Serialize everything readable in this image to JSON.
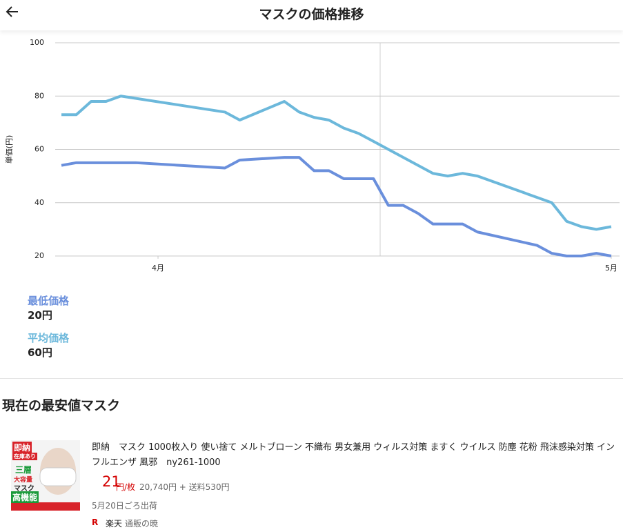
{
  "header": {
    "title": "マスクの価格推移"
  },
  "chart_data": {
    "type": "line",
    "y_label": "単価(円)",
    "xlim": [
      -0.42,
      37.56
    ],
    "xticks": [
      {
        "value": 6.5,
        "label": "4月"
      },
      {
        "value": 37,
        "label": "5月"
      }
    ],
    "ylim": [
      20,
      100
    ],
    "yticks": [
      20,
      40,
      60,
      80,
      100
    ],
    "grid": true,
    "series": [
      {
        "name": "最低価格",
        "color": "#6a8fdc",
        "x": [
          0,
          1,
          5,
          11,
          12,
          15,
          16,
          17,
          18,
          19,
          20,
          21,
          22,
          23,
          24,
          25,
          26,
          27,
          28,
          32,
          33,
          34,
          35,
          36,
          37
        ],
        "values": [
          54,
          55,
          55,
          53,
          56,
          57,
          57,
          52,
          52,
          49,
          49,
          49,
          39,
          39,
          36,
          32,
          32,
          32,
          29,
          24,
          21,
          20,
          20,
          21,
          20
        ]
      },
      {
        "name": "平均価格",
        "color": "#6cb8db",
        "x": [
          0,
          1,
          2,
          3,
          4,
          11,
          12,
          15,
          16,
          17,
          18,
          19,
          20,
          21,
          25,
          26,
          27,
          28,
          33,
          34,
          35,
          36,
          37
        ],
        "values": [
          73,
          73,
          78,
          78,
          80,
          74,
          71,
          78,
          74,
          72,
          71,
          68,
          66,
          63,
          51,
          50,
          51,
          50,
          40,
          33,
          31,
          30,
          31
        ]
      }
    ]
  },
  "summary": {
    "min_price": "20円",
    "avg_price": "60円"
  },
  "section": {
    "title": "現在の最安値マスク"
  },
  "product": {
    "image_texts": [
      "即納",
      "在庫あり",
      "三層",
      "大容量",
      "マスク",
      "高機能"
    ],
    "title": "即納　マスク 1000枚入り 使い捨て メルトブローン 不織布 男女兼用 ウィルス対策 ますく ウイルス 防塵 花粉 飛沫感染対策 インフルエンザ 風邪　ny261-1000",
    "price": "21",
    "price_unit": "円/枚",
    "total": "20,740円 + 送料530円",
    "shipping": "5月20日ごろ出荷",
    "shop_mark": "R",
    "market": "楽天",
    "shop": "通販の暁"
  }
}
